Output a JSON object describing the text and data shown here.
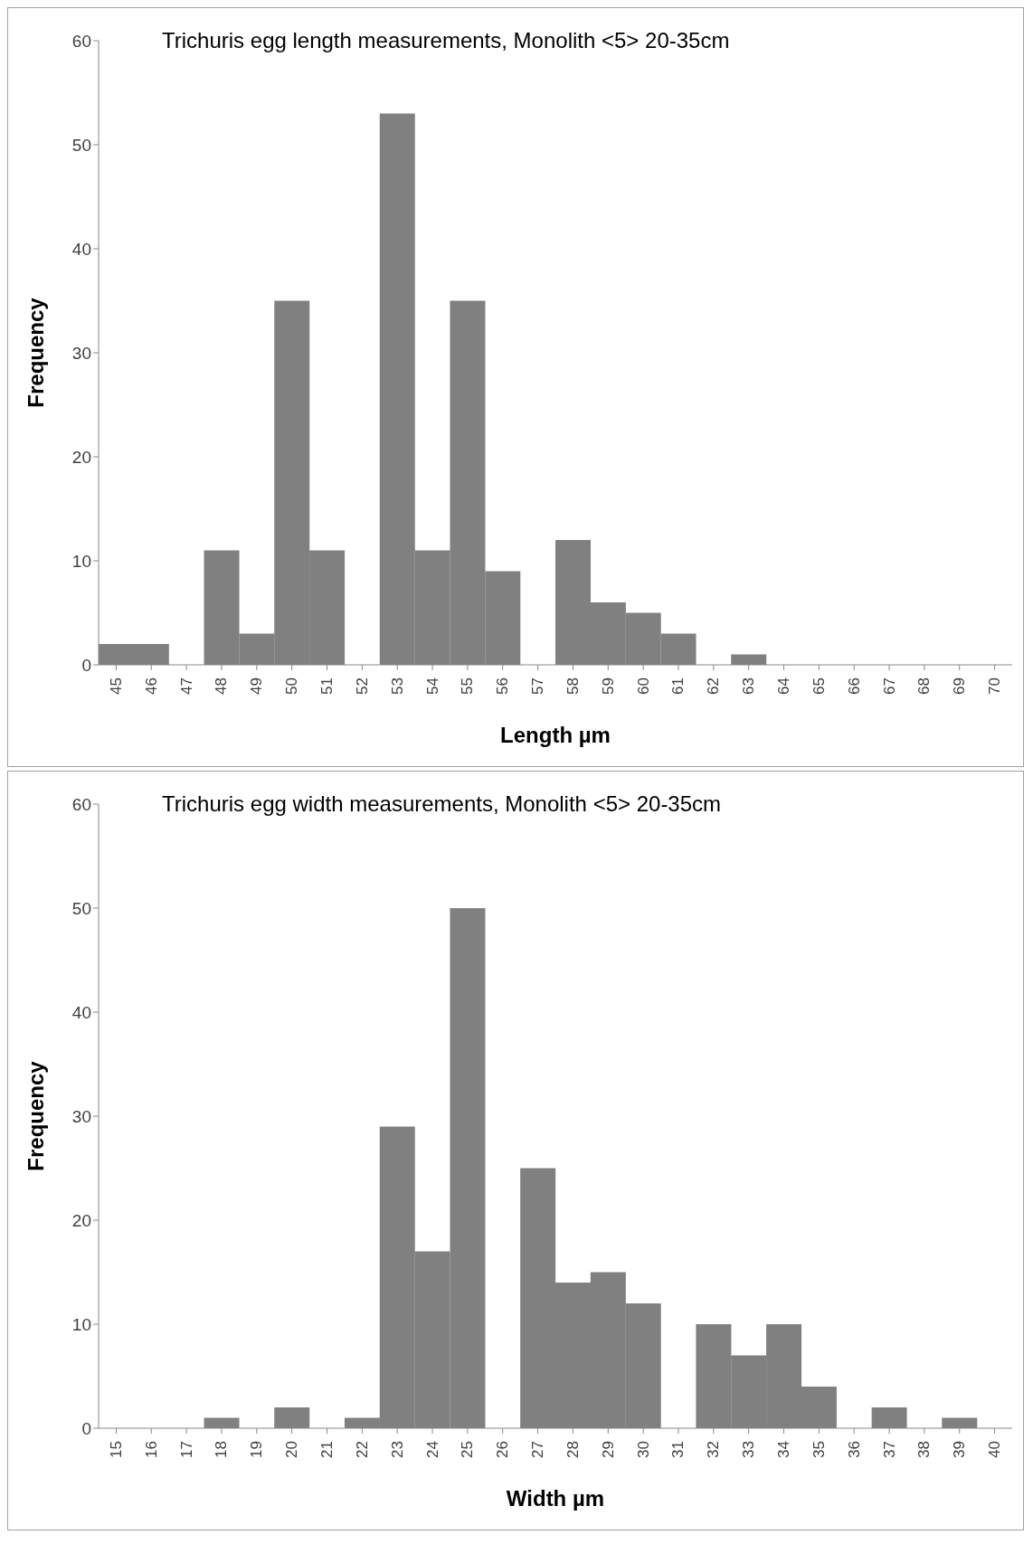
{
  "chart_data": [
    {
      "type": "bar",
      "title": "Trichuris egg length measurements, Monolith <5> 20-35cm",
      "xlabel": "Length µm",
      "ylabel": "Frequency",
      "categories": [
        "45",
        "46",
        "47",
        "48",
        "49",
        "50",
        "51",
        "52",
        "53",
        "54",
        "55",
        "56",
        "57",
        "58",
        "59",
        "60",
        "61",
        "62",
        "63",
        "64",
        "65",
        "66",
        "67",
        "68",
        "69",
        "70"
      ],
      "values": [
        2,
        2,
        0,
        11,
        3,
        35,
        11,
        0,
        53,
        11,
        35,
        9,
        0,
        12,
        6,
        5,
        3,
        0,
        1,
        0,
        0,
        0,
        0,
        0,
        0,
        0
      ],
      "color": "#808080",
      "ylim": [
        0,
        60
      ],
      "yticks": [
        0,
        10,
        20,
        30,
        40,
        50,
        60
      ]
    },
    {
      "type": "bar",
      "title": "Trichuris egg width measurements, Monolith <5> 20-35cm",
      "xlabel": "Width µm",
      "ylabel": "Frequency",
      "categories": [
        "15",
        "16",
        "17",
        "18",
        "19",
        "20",
        "21",
        "22",
        "23",
        "24",
        "25",
        "26",
        "27",
        "28",
        "29",
        "30",
        "31",
        "32",
        "33",
        "34",
        "35",
        "36",
        "37",
        "38",
        "39",
        "40"
      ],
      "values": [
        0,
        0,
        0,
        1,
        0,
        2,
        0,
        1,
        29,
        17,
        50,
        0,
        25,
        14,
        15,
        12,
        0,
        10,
        7,
        10,
        4,
        0,
        2,
        0,
        1,
        0
      ],
      "color": "#808080",
      "ylim": [
        0,
        60
      ],
      "yticks": [
        0,
        10,
        20,
        30,
        40,
        50,
        60
      ]
    }
  ]
}
